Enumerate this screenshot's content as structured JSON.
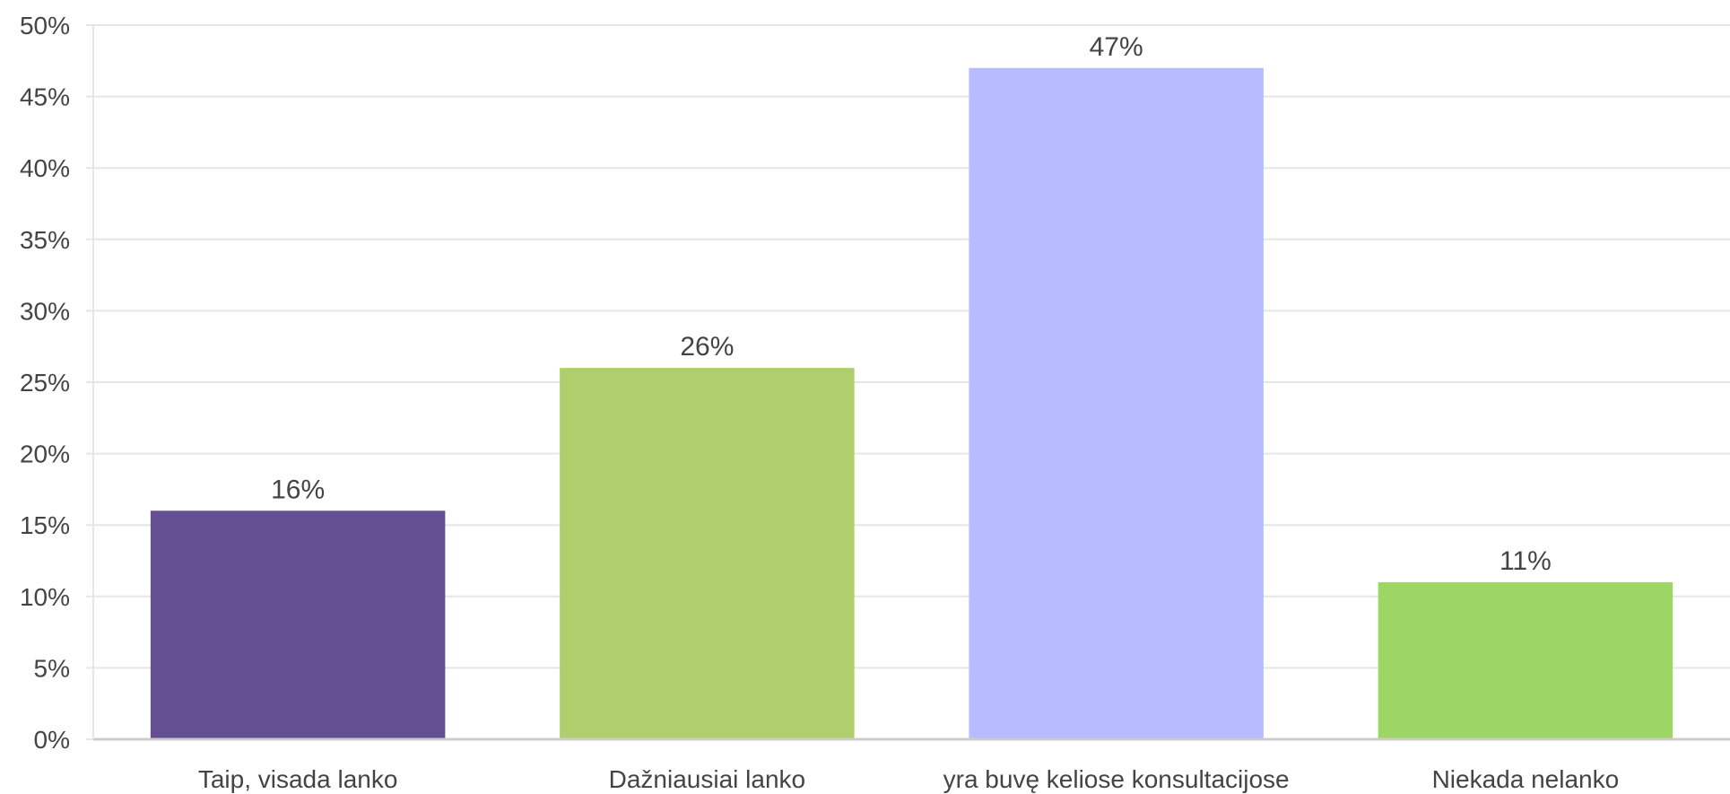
{
  "chart_data": {
    "type": "bar",
    "title": "",
    "xlabel": "",
    "ylabel": "",
    "categories": [
      "Taip, visada lanko",
      "Dažniausiai lanko",
      "yra buvę keliose konsultacijose",
      "Niekada nelanko"
    ],
    "values": [
      16,
      26,
      47,
      11
    ],
    "data_labels": [
      "16%",
      "26%",
      "47%",
      "11%"
    ],
    "colors": [
      "#634f91",
      "#b0ce6c",
      "#b6bcff",
      "#9cd665"
    ],
    "ylim": [
      0,
      50
    ],
    "y_ticks": [
      0,
      5,
      10,
      15,
      20,
      25,
      30,
      35,
      40,
      45,
      50
    ],
    "y_tick_labels": [
      "0%",
      "5%",
      "10%",
      "15%",
      "20%",
      "25%",
      "30%",
      "35%",
      "40%",
      "45%",
      "50%"
    ],
    "grid": true,
    "grid_color": "#e6e6e6",
    "axis_color": "#cccccc",
    "text_color": "#444444",
    "legend": "none"
  }
}
